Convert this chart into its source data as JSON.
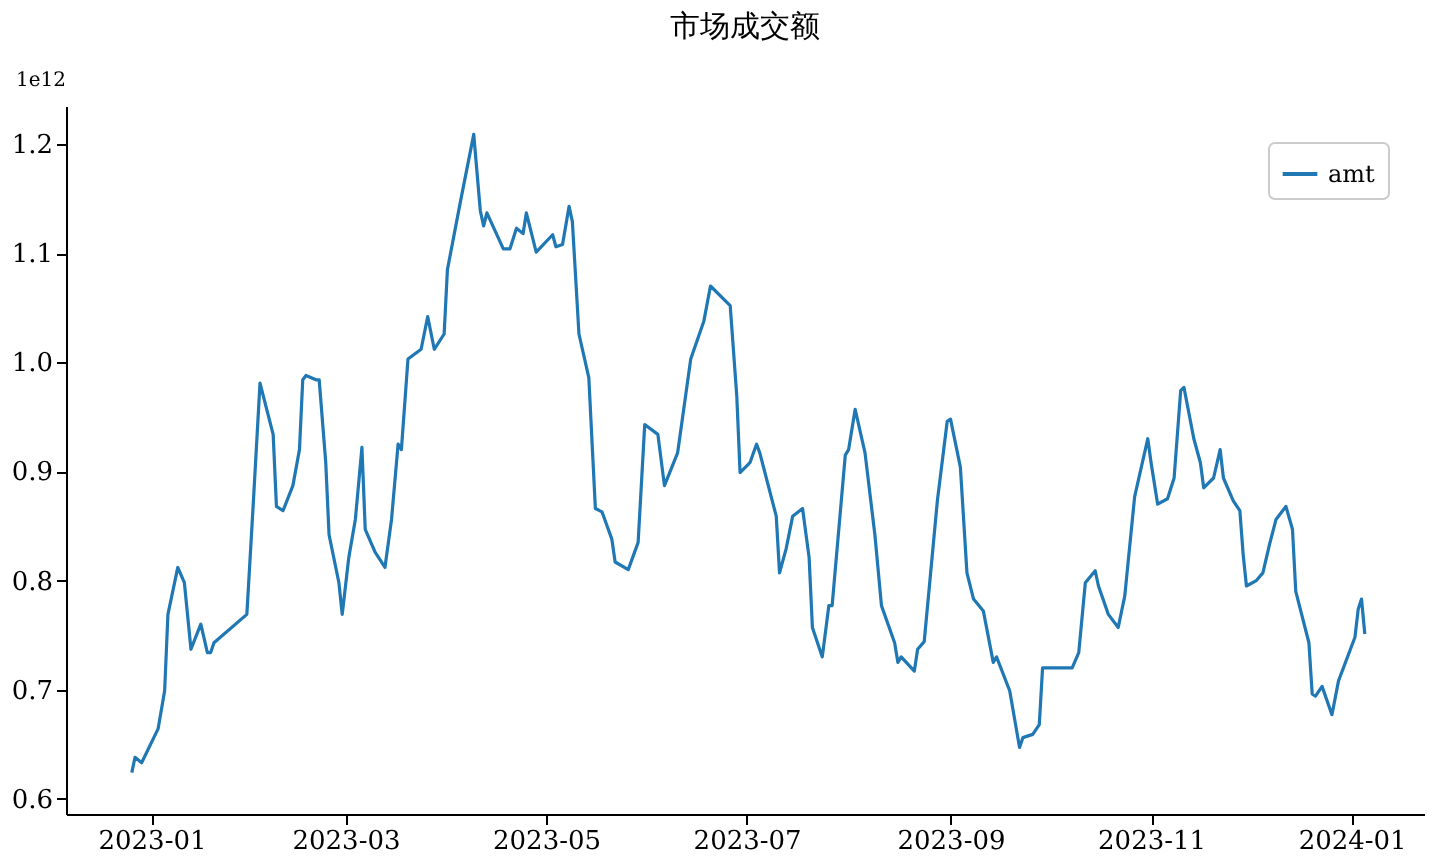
{
  "chart_data": {
    "type": "line",
    "title": "市场成交额",
    "annotations": [
      "1e12"
    ],
    "x": [
      "2022-12-26",
      "2022-12-27",
      "2022-12-29",
      "2023-01-03",
      "2023-01-05",
      "2023-01-06",
      "2023-01-09",
      "2023-01-11",
      "2023-01-13",
      "2023-01-16",
      "2023-01-18",
      "2023-01-19",
      "2023-01-20",
      "2023-01-30",
      "2023-02-01",
      "2023-02-03",
      "2023-02-07",
      "2023-02-08",
      "2023-02-10",
      "2023-02-13",
      "2023-02-15",
      "2023-02-16",
      "2023-02-17",
      "2023-02-20",
      "2023-02-21",
      "2023-02-23",
      "2023-02-24",
      "2023-02-27",
      "2023-02-28",
      "2023-03-02",
      "2023-03-04",
      "2023-03-06",
      "2023-03-07",
      "2023-03-10",
      "2023-03-13",
      "2023-03-15",
      "2023-03-17",
      "2023-03-18",
      "2023-03-20",
      "2023-03-24",
      "2023-03-26",
      "2023-03-28",
      "2023-03-31",
      "2023-04-01",
      "2023-04-05",
      "2023-04-09",
      "2023-04-11",
      "2023-04-12",
      "2023-04-13",
      "2023-04-18",
      "2023-04-20",
      "2023-04-22",
      "2023-04-24",
      "2023-04-25",
      "2023-04-28",
      "2023-05-03",
      "2023-05-04",
      "2023-05-06",
      "2023-05-08",
      "2023-05-09",
      "2023-05-11",
      "2023-05-14",
      "2023-05-16",
      "2023-05-18",
      "2023-05-21",
      "2023-05-22",
      "2023-05-26",
      "2023-05-29",
      "2023-05-31",
      "2023-06-04",
      "2023-06-06",
      "2023-06-10",
      "2023-06-14",
      "2023-06-18",
      "2023-06-20",
      "2023-06-26",
      "2023-06-28",
      "2023-06-29",
      "2023-07-02",
      "2023-07-04",
      "2023-07-05",
      "2023-07-10",
      "2023-07-11",
      "2023-07-13",
      "2023-07-15",
      "2023-07-18",
      "2023-07-20",
      "2023-07-21",
      "2023-07-24",
      "2023-07-26",
      "2023-07-27",
      "2023-07-31",
      "2023-08-01",
      "2023-08-03",
      "2023-08-06",
      "2023-08-09",
      "2023-08-11",
      "2023-08-15",
      "2023-08-16",
      "2023-08-17",
      "2023-08-21",
      "2023-08-22",
      "2023-08-24",
      "2023-08-28",
      "2023-08-31",
      "2023-09-01",
      "2023-09-04",
      "2023-09-06",
      "2023-09-08",
      "2023-09-11",
      "2023-09-14",
      "2023-09-15",
      "2023-09-19",
      "2023-09-22",
      "2023-09-23",
      "2023-09-26",
      "2023-09-28",
      "2023-09-29",
      "2023-10-08",
      "2023-10-10",
      "2023-10-12",
      "2023-10-15",
      "2023-10-16",
      "2023-10-19",
      "2023-10-22",
      "2023-10-24",
      "2023-10-27",
      "2023-10-31",
      "2023-11-01",
      "2023-11-03",
      "2023-11-06",
      "2023-11-08",
      "2023-11-10",
      "2023-11-11",
      "2023-11-14",
      "2023-11-16",
      "2023-11-17",
      "2023-11-20",
      "2023-11-22",
      "2023-11-23",
      "2023-11-26",
      "2023-11-28",
      "2023-11-29",
      "2023-11-30",
      "2023-12-03",
      "2023-12-05",
      "2023-12-07",
      "2023-12-09",
      "2023-12-12",
      "2023-12-14",
      "2023-12-15",
      "2023-12-19",
      "2023-12-20",
      "2023-12-21",
      "2023-12-23",
      "2023-12-26",
      "2023-12-28",
      "2024-01-02",
      "2024-01-03",
      "2024-01-04",
      "2024-01-05"
    ],
    "series": [
      {
        "name": "amt",
        "color": "#1f77b4",
        "values": [
          0.624,
          0.638,
          0.633,
          0.664,
          0.699,
          0.769,
          0.812,
          0.798,
          0.737,
          0.76,
          0.734,
          0.734,
          0.743,
          0.769,
          0.873,
          0.981,
          0.934,
          0.868,
          0.864,
          0.887,
          0.92,
          0.984,
          0.988,
          0.984,
          0.984,
          0.908,
          0.842,
          0.798,
          0.769,
          0.821,
          0.856,
          0.922,
          0.847,
          0.826,
          0.812,
          0.856,
          0.925,
          0.92,
          1.003,
          1.012,
          1.042,
          1.012,
          1.026,
          1.085,
          1.148,
          1.209,
          1.139,
          1.125,
          1.137,
          1.104,
          1.104,
          1.123,
          1.118,
          1.137,
          1.101,
          1.117,
          1.106,
          1.108,
          1.143,
          1.129,
          1.026,
          0.986,
          0.866,
          0.863,
          0.838,
          0.817,
          0.81,
          0.835,
          0.943,
          0.934,
          0.887,
          0.917,
          1.003,
          1.038,
          1.07,
          1.052,
          0.969,
          0.899,
          0.908,
          0.925,
          0.917,
          0.859,
          0.807,
          0.829,
          0.859,
          0.866,
          0.821,
          0.757,
          0.73,
          0.777,
          0.777,
          0.915,
          0.92,
          0.957,
          0.917,
          0.842,
          0.777,
          0.743,
          0.725,
          0.73,
          0.717,
          0.737,
          0.744,
          0.873,
          0.946,
          0.948,
          0.904,
          0.807,
          0.783,
          0.772,
          0.725,
          0.73,
          0.699,
          0.647,
          0.656,
          0.659,
          0.668,
          0.72,
          0.72,
          0.734,
          0.798,
          0.809,
          0.795,
          0.769,
          0.757,
          0.786,
          0.877,
          0.93,
          0.908,
          0.87,
          0.875,
          0.894,
          0.974,
          0.977,
          0.93,
          0.908,
          0.885,
          0.894,
          0.92,
          0.894,
          0.873,
          0.864,
          0.824,
          0.795,
          0.8,
          0.807,
          0.833,
          0.856,
          0.868,
          0.847,
          0.79,
          0.743,
          0.696,
          0.694,
          0.703,
          0.677,
          0.708,
          0.748,
          0.774,
          0.783,
          0.751
        ]
      }
    ],
    "xlim": [
      "2022-12-06",
      "2024-01-23"
    ],
    "xticks": [
      "2023-01",
      "2023-03",
      "2023-05",
      "2023-07",
      "2023-09",
      "2023-11",
      "2024-01"
    ],
    "ylim": [
      0.586,
      1.235
    ],
    "yticks": [
      0.6,
      0.7,
      0.8,
      0.9,
      {
        "value": 1.0,
        "label": "1.0"
      },
      1.1,
      1.2
    ],
    "grid": false,
    "legend": "top right",
    "marker": "none",
    "line_style": "solid"
  }
}
